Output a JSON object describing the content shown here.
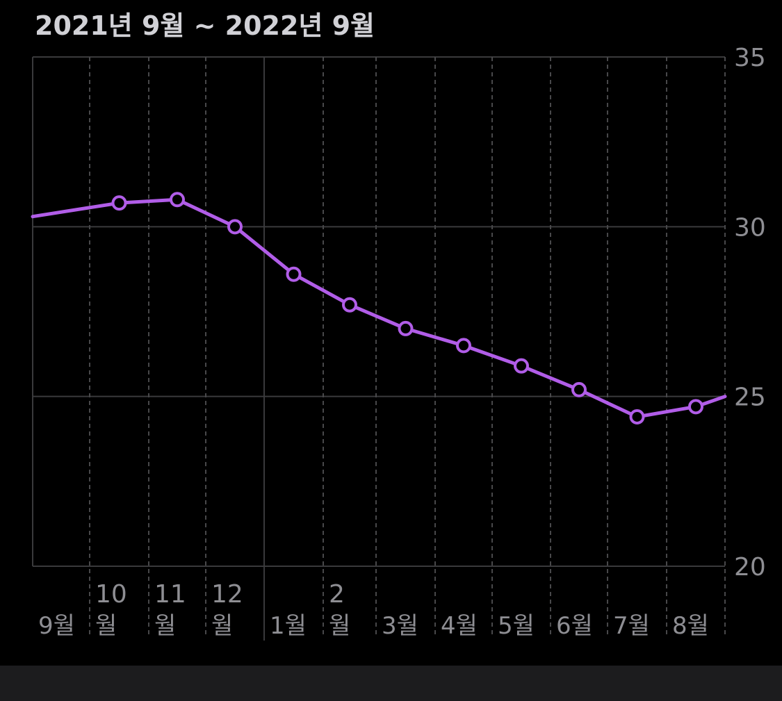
{
  "header": {
    "date_range": "2021년 9월 ~ 2022년 9월"
  },
  "colors": {
    "background": "#000000",
    "line": "#b15de8",
    "marker_fill": "#000000",
    "grid_solid": "#3a3a3c",
    "grid_dashed": "#48484a",
    "axis_text": "#8e8e93",
    "title": "#d1d1d6",
    "bottom_bar": "#1c1c1e"
  },
  "chart_data": {
    "type": "line",
    "title": "2021년 9월 ~ 2022년 9월",
    "xlabel": "",
    "ylabel": "",
    "ylim": [
      20,
      35
    ],
    "yticks": [
      20,
      25,
      30,
      35
    ],
    "y_axis_side": "right",
    "grid": true,
    "x_axis": {
      "min": 0,
      "max": 12,
      "month_labels": [
        {
          "pos": 0,
          "top": "",
          "bottom": "9월"
        },
        {
          "pos": 1,
          "top": "10",
          "bottom": "월"
        },
        {
          "pos": 2,
          "top": "11",
          "bottom": "월"
        },
        {
          "pos": 3,
          "top": "12",
          "bottom": "월"
        },
        {
          "pos": 4,
          "top": "",
          "bottom": "1월"
        },
        {
          "pos": 5,
          "top": "2",
          "bottom": "월"
        },
        {
          "pos": 6,
          "top": "",
          "bottom": "3월"
        },
        {
          "pos": 7,
          "top": "",
          "bottom": "4월"
        },
        {
          "pos": 8,
          "top": "",
          "bottom": "5월"
        },
        {
          "pos": 9,
          "top": "",
          "bottom": "6월"
        },
        {
          "pos": 10,
          "top": "",
          "bottom": "7월"
        },
        {
          "pos": 11,
          "top": "",
          "bottom": "8월"
        }
      ]
    },
    "series": [
      {
        "points": [
          {
            "x": 1.5,
            "y": 30.7
          },
          {
            "x": 2.5,
            "y": 30.8
          },
          {
            "x": 3.5,
            "y": 30.0
          },
          {
            "x": 4.5,
            "y": 28.6
          },
          {
            "x": 5.5,
            "y": 27.7
          },
          {
            "x": 6.5,
            "y": 27.0
          },
          {
            "x": 7.5,
            "y": 26.5
          },
          {
            "x": 8.5,
            "y": 25.9
          },
          {
            "x": 9.5,
            "y": 25.2
          },
          {
            "x": 10.5,
            "y": 24.4
          },
          {
            "x": 11.5,
            "y": 24.7
          }
        ],
        "line_start": {
          "x": 0,
          "y": 30.3
        },
        "line_end": {
          "x": 12,
          "y": 25.0
        }
      }
    ]
  }
}
